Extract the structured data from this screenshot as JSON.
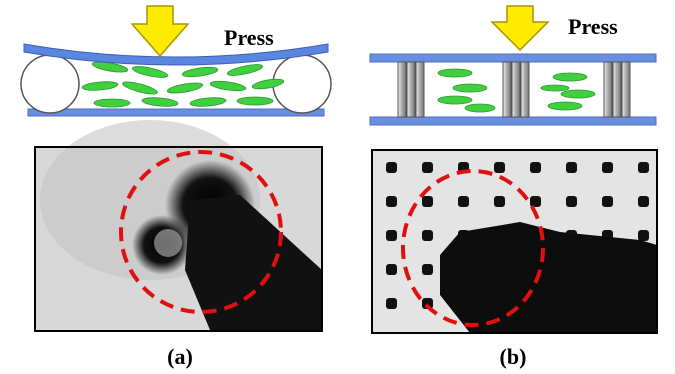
{
  "panels": [
    {
      "press_label": "Press",
      "caption": "(a)"
    },
    {
      "press_label": "Press",
      "caption": "(b)"
    }
  ]
}
